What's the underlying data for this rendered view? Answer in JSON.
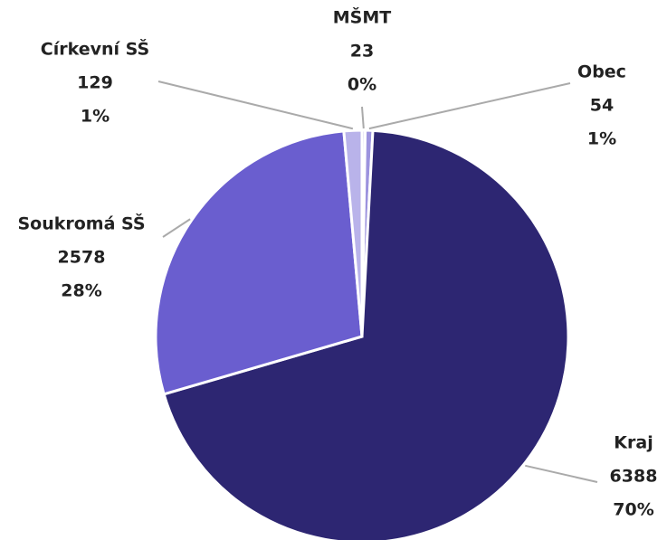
{
  "chart_data": {
    "type": "pie",
    "categories": [
      "MŠMT",
      "Obec",
      "Kraj",
      "Soukromá SŠ",
      "Církevní SŠ"
    ],
    "values": [
      23,
      54,
      6388,
      2578,
      129
    ],
    "percent_labels": [
      "0%",
      "1%",
      "70%",
      "28%",
      "1%"
    ],
    "colors": [
      "#d4d0f2",
      "#9c93de",
      "#2d2672",
      "#6a5ecf",
      "#b9b3ea"
    ]
  }
}
